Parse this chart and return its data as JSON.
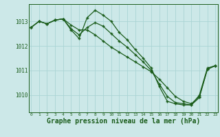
{
  "background_color": "#cce8e8",
  "grid_color": "#aad4d4",
  "line_color": "#1a5c1a",
  "xlabel": "Graphe pression niveau de la mer (hPa)",
  "xlabel_fontsize": 7,
  "yticks": [
    1010,
    1011,
    1012,
    1013
  ],
  "xticks": [
    0,
    1,
    2,
    3,
    4,
    5,
    6,
    7,
    8,
    9,
    10,
    11,
    12,
    13,
    14,
    15,
    16,
    17,
    18,
    19,
    20,
    21,
    22,
    23
  ],
  "ylim": [
    1009.3,
    1013.7
  ],
  "xlim": [
    -0.3,
    23.3
  ],
  "line1_x": [
    0,
    1,
    2,
    3,
    4,
    5,
    6,
    7,
    8,
    9,
    10,
    11,
    12,
    13,
    14,
    15,
    16,
    17,
    18,
    19,
    20,
    21,
    22,
    23
  ],
  "line1_y": [
    1012.75,
    1013.0,
    1012.9,
    1013.05,
    1013.1,
    1012.65,
    1012.3,
    1013.15,
    1013.45,
    1013.25,
    1013.0,
    1012.55,
    1012.25,
    1011.85,
    1011.5,
    1011.1,
    1010.35,
    1009.75,
    1009.65,
    1009.6,
    1009.6,
    1010.0,
    1011.1,
    1011.2
  ],
  "line2_x": [
    0,
    1,
    2,
    3,
    4,
    5,
    6,
    7,
    8,
    9,
    10,
    11,
    12,
    13,
    14,
    15,
    16,
    17,
    18,
    19,
    20,
    21,
    22,
    23
  ],
  "line2_y": [
    1012.75,
    1013.0,
    1012.9,
    1013.05,
    1013.1,
    1012.7,
    1012.45,
    1012.75,
    1012.95,
    1012.8,
    1012.5,
    1012.2,
    1011.95,
    1011.65,
    1011.35,
    1011.0,
    1010.45,
    1009.95,
    1009.7,
    1009.65,
    1009.6,
    1009.9,
    1011.05,
    1011.2
  ],
  "line3_x": [
    0,
    1,
    2,
    3,
    4,
    5,
    6,
    7,
    8,
    9,
    10,
    11,
    12,
    13,
    14,
    15,
    16,
    17,
    18,
    19,
    20,
    21,
    22,
    23
  ],
  "line3_y": [
    1012.75,
    1013.0,
    1012.9,
    1013.05,
    1013.1,
    1012.85,
    1012.65,
    1012.65,
    1012.45,
    1012.2,
    1011.95,
    1011.75,
    1011.55,
    1011.35,
    1011.15,
    1010.95,
    1010.65,
    1010.3,
    1009.95,
    1009.75,
    1009.65,
    1009.95,
    1011.05,
    1011.2
  ]
}
